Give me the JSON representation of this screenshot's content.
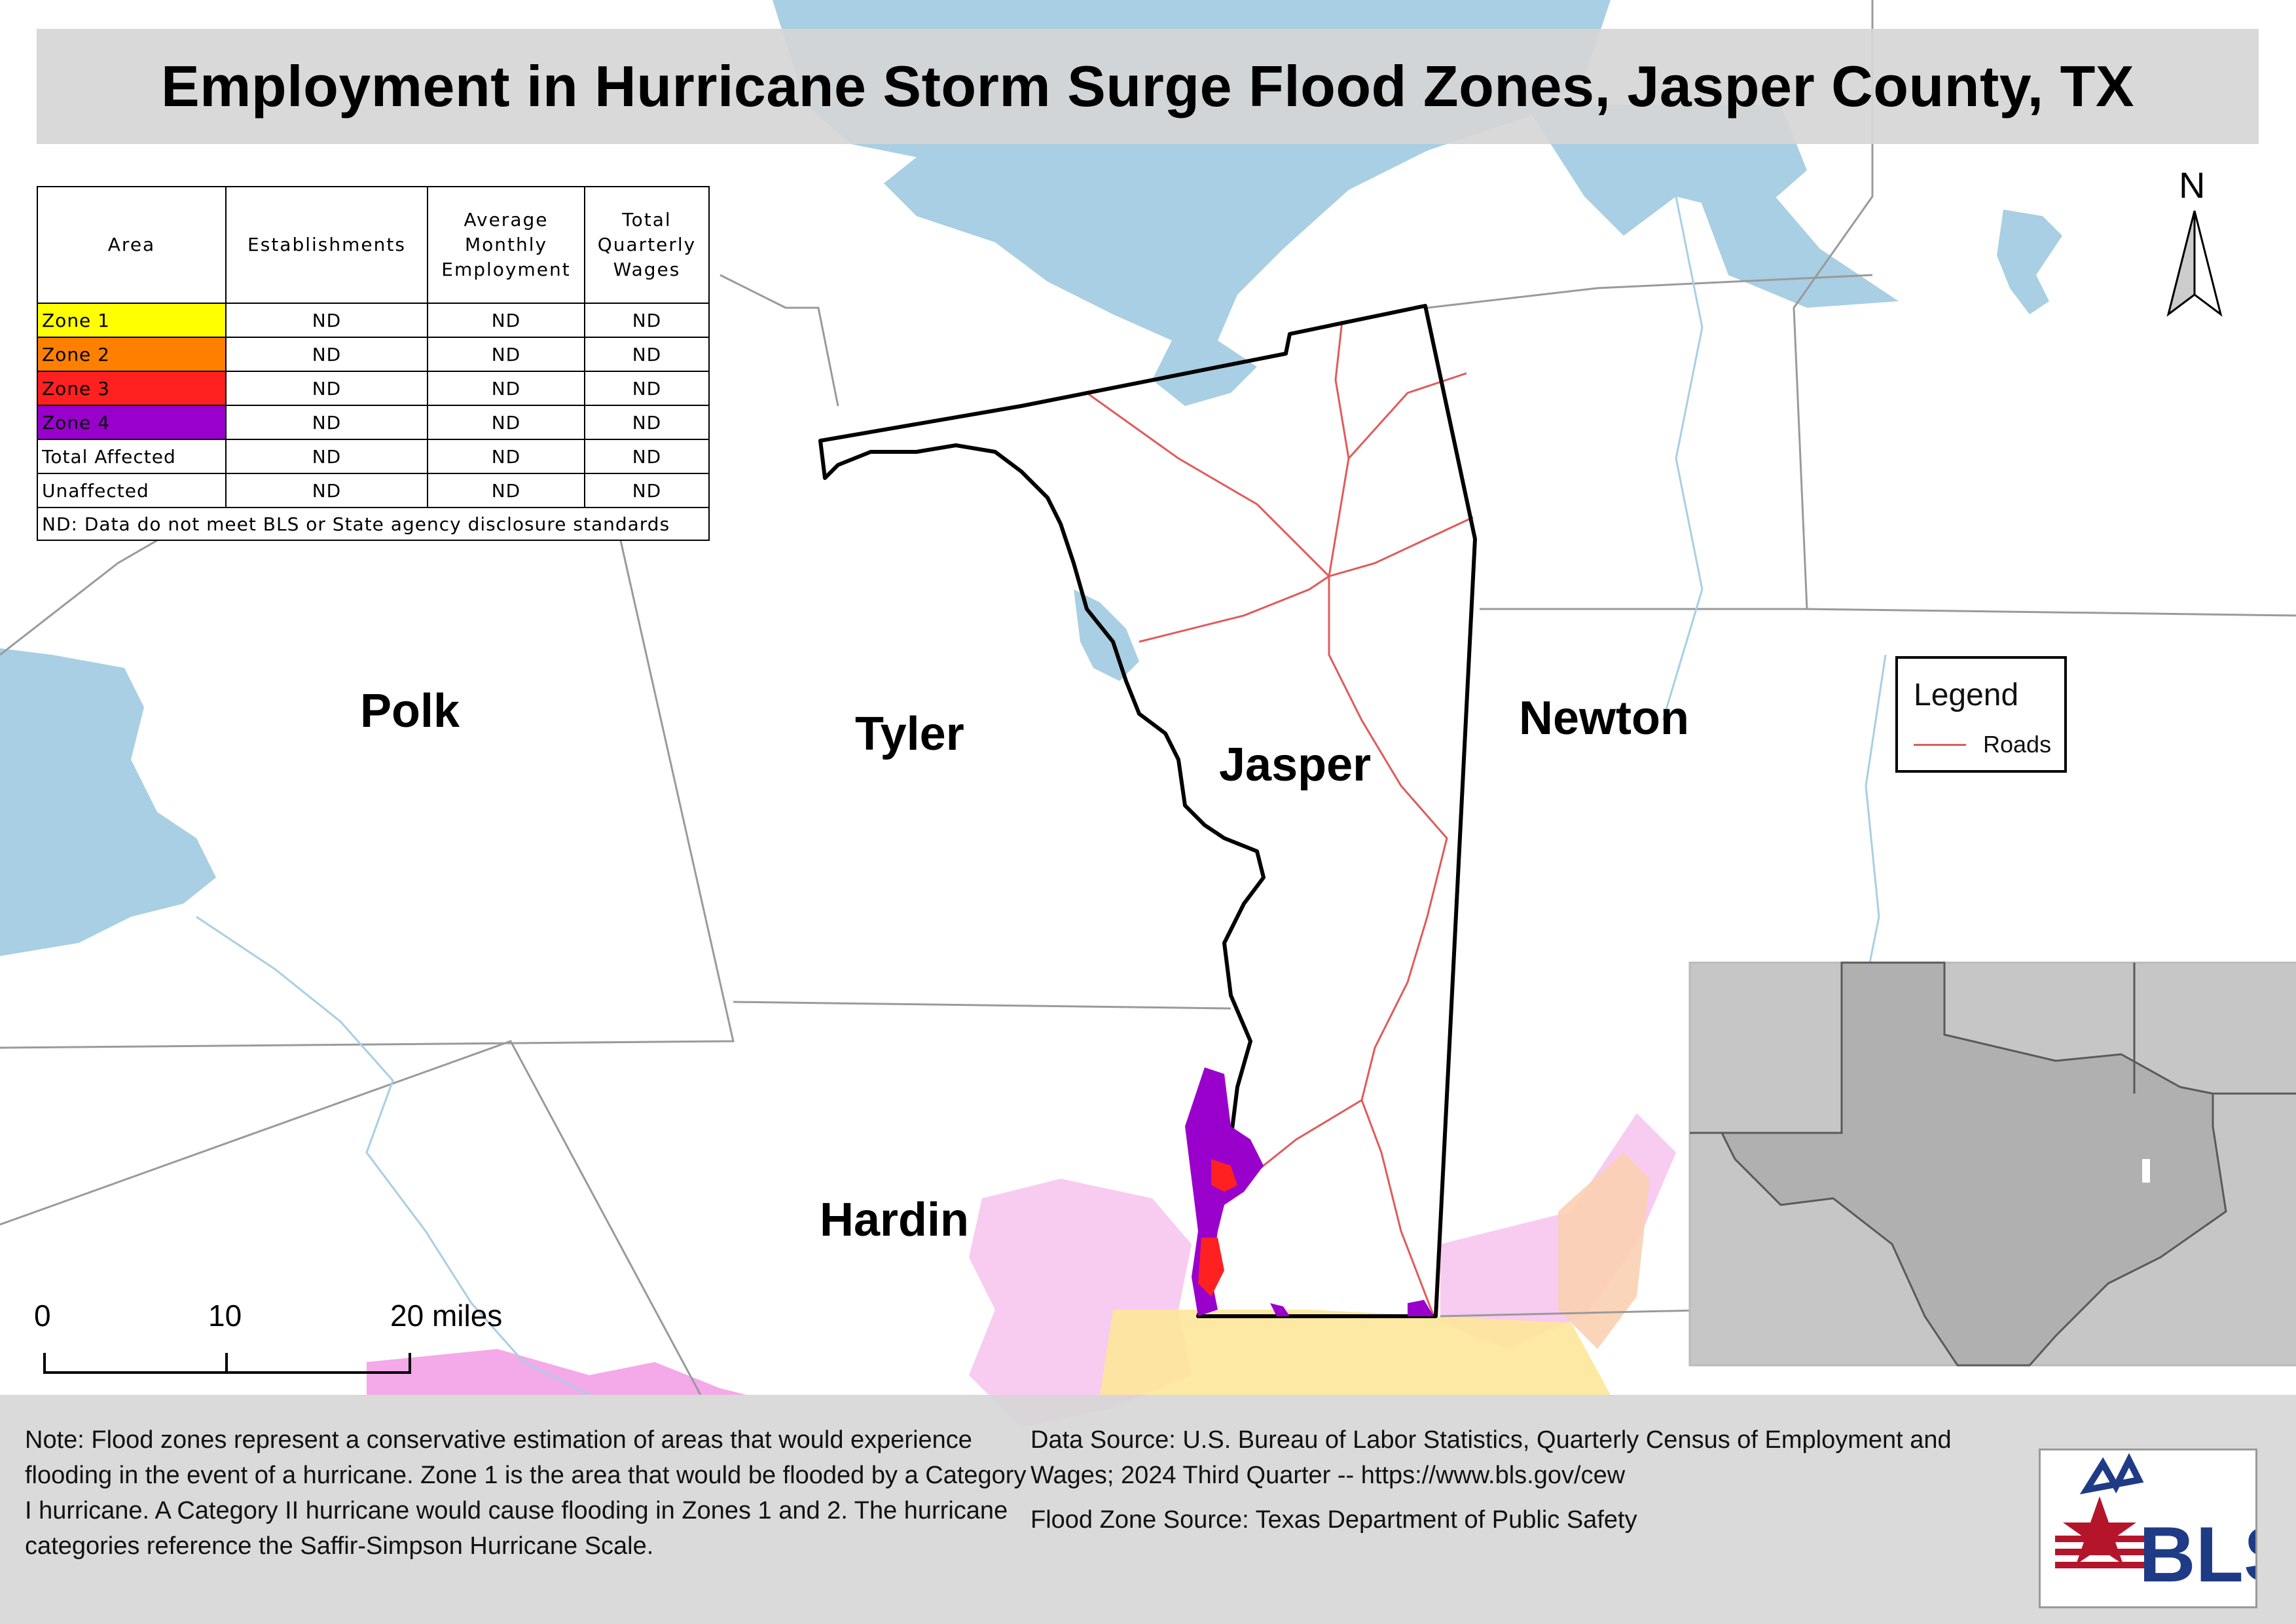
{
  "title": "Employment in Hurricane Storm Surge Flood Zones, Jasper County, TX",
  "table": {
    "headers": {
      "area": "Area",
      "establishments": "Establishments",
      "employment_line1": "Average",
      "employment_line2": "Monthly",
      "employment_line3": "Employment",
      "wages_line1": "Total",
      "wages_line2": "Quarterly",
      "wages_line3": "Wages"
    },
    "rows": [
      {
        "area": "Zone 1",
        "color": "#ffff00",
        "establishments": "ND",
        "employment": "ND",
        "wages": "ND"
      },
      {
        "area": "Zone 2",
        "color": "#ff8000",
        "establishments": "ND",
        "employment": "ND",
        "wages": "ND"
      },
      {
        "area": "Zone 3",
        "color": "#ff2020",
        "establishments": "ND",
        "employment": "ND",
        "wages": "ND"
      },
      {
        "area": "Zone 4",
        "color": "#9900cc",
        "establishments": "ND",
        "employment": "ND",
        "wages": "ND"
      },
      {
        "area": "Total Affected",
        "color": "#ffffff",
        "establishments": "ND",
        "employment": "ND",
        "wages": "ND"
      },
      {
        "area": "Unaffected",
        "color": "#ffffff",
        "establishments": "ND",
        "employment": "ND",
        "wages": "ND"
      }
    ],
    "footnote": "ND: Data do not meet BLS or State agency disclosure standards"
  },
  "counties": {
    "polk": "Polk",
    "tyler": "Tyler",
    "jasper": "Jasper",
    "newton": "Newton",
    "hardin": "Hardin"
  },
  "north_arrow": "N",
  "legend": {
    "title": "Legend",
    "roads": "Roads",
    "roads_color": "#e05b5b"
  },
  "scale_bar": {
    "zero": "0",
    "ten": "10",
    "twenty": "20 miles"
  },
  "note": "Note: Flood zones represent a conservative estimation of areas that would experience flooding in the event of a hurricane. Zone 1 is the area that would be flooded by a Category I hurricane. A Category II hurricane would cause flooding in Zones 1 and 2. The hurricane categories reference the Saffir-Simpson Hurricane Scale.",
  "data_source": "Data Source: U.S. Bureau of Labor Statistics, Quarterly Census of Employment and Wages; 2024 Third Quarter -- https://www.bls.gov/cew",
  "flood_source": "Flood Zone Source: Texas Department of Public Safety",
  "logo_text": "BLS",
  "colors": {
    "water": "#a8cfe3",
    "county_border": "#000000",
    "zone1": "#ffff00",
    "zone2": "#ff8000",
    "zone3": "#ff2020",
    "zone4": "#9900cc"
  }
}
